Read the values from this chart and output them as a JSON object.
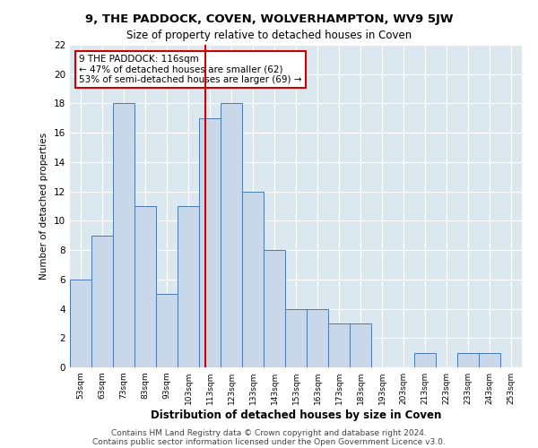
{
  "title1": "9, THE PADDOCK, COVEN, WOLVERHAMPTON, WV9 5JW",
  "title2": "Size of property relative to detached houses in Coven",
  "xlabel": "Distribution of detached houses by size in Coven",
  "ylabel": "Number of detached properties",
  "bins": [
    53,
    63,
    73,
    83,
    93,
    103,
    113,
    123,
    133,
    143,
    153,
    163,
    173,
    183,
    193,
    203,
    213,
    223,
    233,
    243,
    253
  ],
  "counts": [
    6,
    9,
    18,
    11,
    5,
    11,
    17,
    18,
    12,
    8,
    4,
    4,
    3,
    3,
    0,
    0,
    1,
    0,
    1,
    1
  ],
  "bar_color": "#c8d8e8",
  "bar_edge_color": "#4a7aaf",
  "property_size": 116,
  "annotation_text": "9 THE PADDOCK: 116sqm\n← 47% of detached houses are smaller (62)\n53% of semi-detached houses are larger (69) →",
  "annotation_box_color": "#ffffff",
  "annotation_box_edge": "#cc0000",
  "vline_color": "#cc0000",
  "ylim": [
    0,
    22
  ],
  "yticks": [
    0,
    2,
    4,
    6,
    8,
    10,
    12,
    14,
    16,
    18,
    20,
    22
  ],
  "footer1": "Contains HM Land Registry data © Crown copyright and database right 2024.",
  "footer2": "Contains public sector information licensed under the Open Government Licence v3.0.",
  "bg_color": "#dce8f0",
  "plot_bg_color": "#dce8f0"
}
